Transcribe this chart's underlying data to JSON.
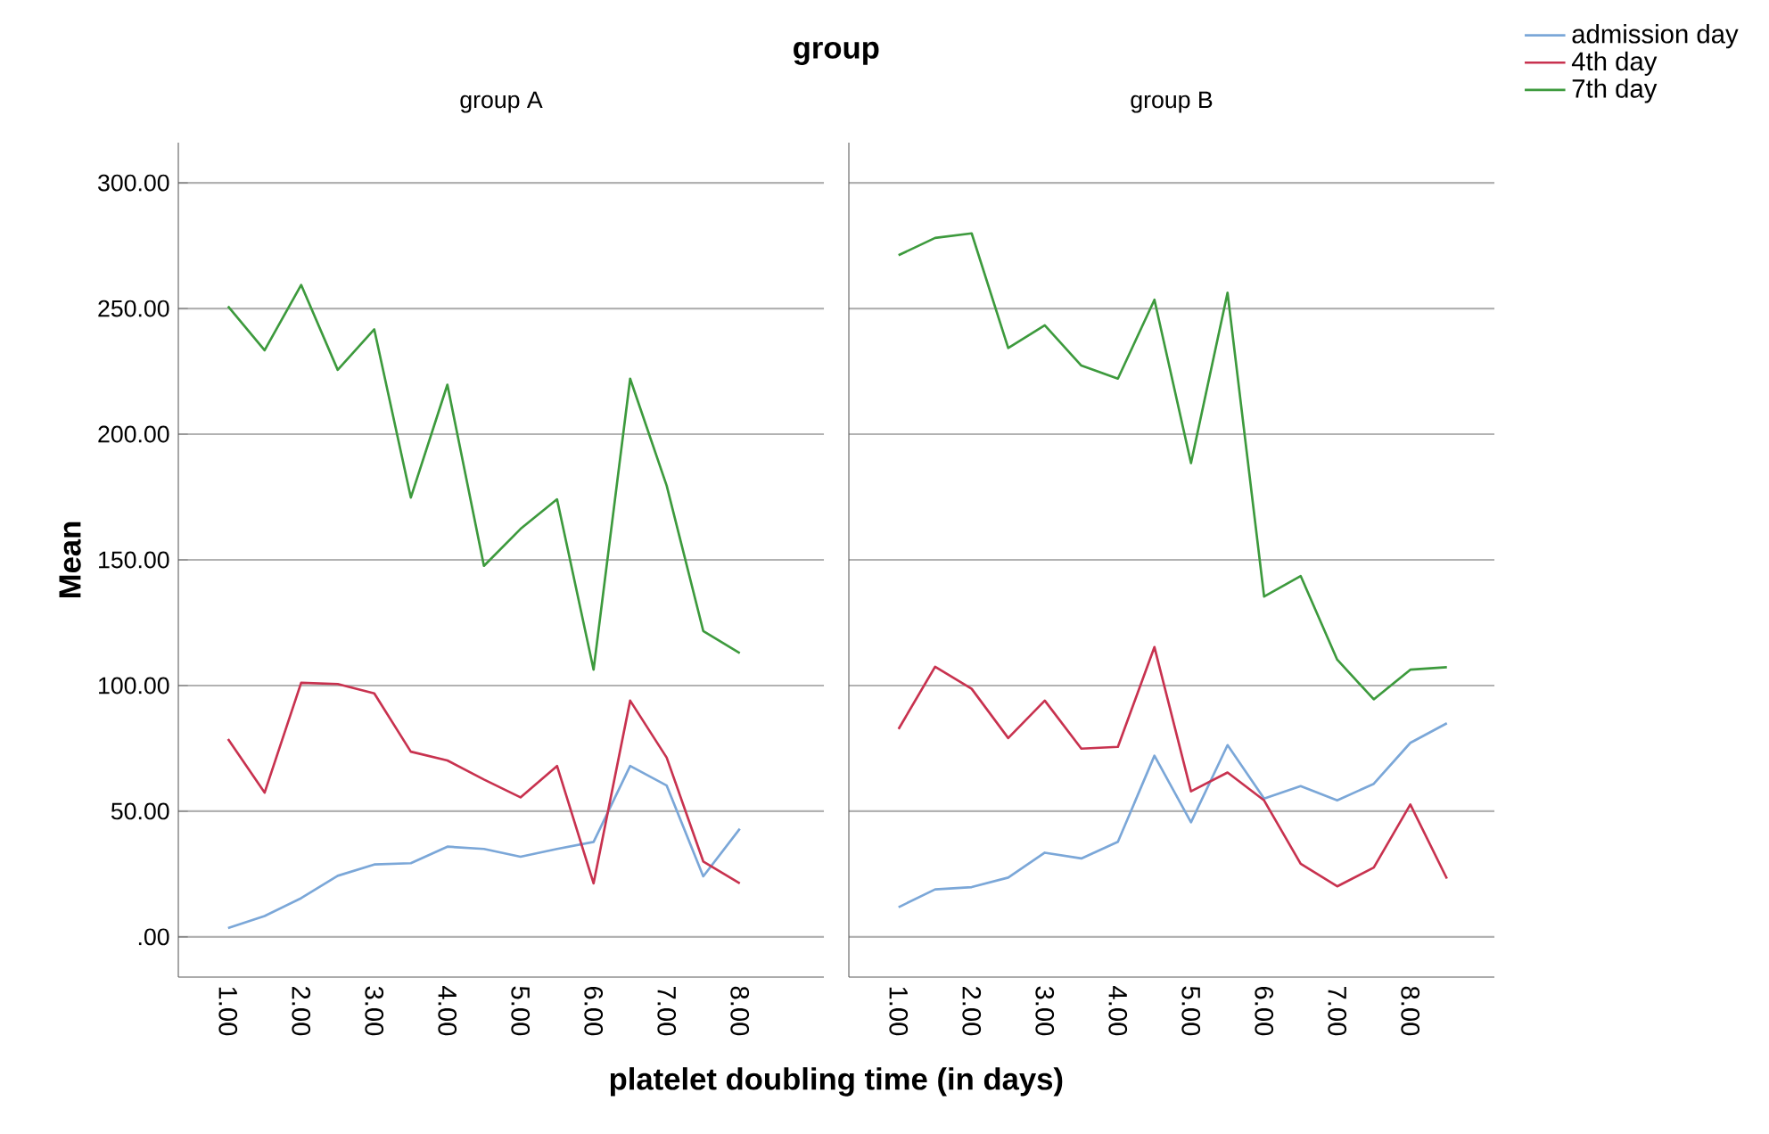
{
  "chart_data": [
    {
      "type": "line",
      "title": "group A",
      "annotations": [
        "group"
      ],
      "xlabel": "platelet doubling time (in days)",
      "ylabel": "Mean",
      "legend": "top right",
      "grid": "y",
      "xlim": [
        0.32,
        9.15
      ],
      "ylim": [
        -16,
        316
      ],
      "xticks": [
        {
          "value": 1,
          "label": "1.00"
        },
        {
          "value": 2,
          "label": "2.00"
        },
        {
          "value": 3,
          "label": "3.00"
        },
        {
          "value": 4,
          "label": "4.00"
        },
        {
          "value": 5,
          "label": "5.00"
        },
        {
          "value": 6,
          "label": "6.00"
        },
        {
          "value": 7,
          "label": "7.00"
        },
        {
          "value": 8,
          "label": "8.00"
        }
      ],
      "yticks": [
        {
          "value": 0,
          "label": ".00"
        },
        {
          "value": 50,
          "label": "50.00"
        },
        {
          "value": 100,
          "label": "100.00"
        },
        {
          "value": 150,
          "label": "150.00"
        },
        {
          "value": 200,
          "label": "200.00"
        },
        {
          "value": 250,
          "label": "250.00"
        },
        {
          "value": 300,
          "label": "300.00"
        }
      ],
      "x": [
        1,
        1.5,
        2,
        2.5,
        3,
        3.5,
        4,
        4.5,
        5,
        5.5,
        6,
        6.5,
        7,
        7.5,
        8
      ],
      "series": [
        {
          "name": "admission day",
          "color": "#7ba7d8",
          "values": [
            3.5,
            8.3,
            15.4,
            24.3,
            28.8,
            29.3,
            35.9,
            35.0,
            31.9,
            35.0,
            37.8,
            68.0,
            60.2,
            24.1,
            43.0
          ]
        },
        {
          "name": "4th day",
          "color": "#c8324f",
          "values": [
            78.7,
            57.4,
            101.1,
            100.6,
            96.9,
            73.7,
            70.2,
            62.6,
            55.5,
            68.0,
            21.3,
            94.0,
            71.3,
            30.0,
            21.3
          ]
        },
        {
          "name": "7th day",
          "color": "#3d9a3d",
          "values": [
            250.9,
            233.4,
            259.4,
            225.6,
            241.7,
            174.8,
            219.7,
            147.6,
            162.3,
            174.1,
            106.3,
            222.1,
            179.5,
            121.7,
            112.9
          ]
        }
      ]
    },
    {
      "type": "line",
      "title": "group B",
      "tick_labels": "x",
      "grid": "y",
      "xlim": [
        0.32,
        9.15
      ],
      "ylim": [
        -16,
        316
      ],
      "xticks": [
        {
          "value": 1,
          "label": "1.00"
        },
        {
          "value": 2,
          "label": "2.00"
        },
        {
          "value": 3,
          "label": "3.00"
        },
        {
          "value": 4,
          "label": "4.00"
        },
        {
          "value": 5,
          "label": "5.00"
        },
        {
          "value": 6,
          "label": "6.00"
        },
        {
          "value": 7,
          "label": "7.00"
        },
        {
          "value": 8,
          "label": "8.00"
        }
      ],
      "yticks": [
        0,
        50,
        100,
        150,
        200,
        250,
        300
      ],
      "x": [
        1,
        1.5,
        2,
        2.5,
        3,
        3.5,
        4,
        4.5,
        5,
        5.5,
        6,
        6.5,
        7,
        7.5,
        8,
        8.5
      ],
      "series": [
        {
          "color": "#7ba7d8",
          "values": [
            11.8,
            18.9,
            19.8,
            23.6,
            33.5,
            31.2,
            37.8,
            72.1,
            45.6,
            76.3,
            55.0,
            60.0,
            54.3,
            60.9,
            77.2,
            85.0
          ]
        },
        {
          "color": "#c8324f",
          "values": [
            82.7,
            107.5,
            98.7,
            79.1,
            94.0,
            74.9,
            75.6,
            115.3,
            57.9,
            65.4,
            54.3,
            29.1,
            20.1,
            27.6,
            52.7,
            23.2
          ]
        },
        {
          "color": "#3d9a3d",
          "values": [
            271.2,
            278.1,
            279.9,
            234.3,
            243.3,
            227.3,
            222.1,
            253.5,
            188.5,
            256.3,
            135.4,
            143.6,
            110.3,
            94.5,
            106.3,
            107.3
          ]
        }
      ]
    }
  ]
}
